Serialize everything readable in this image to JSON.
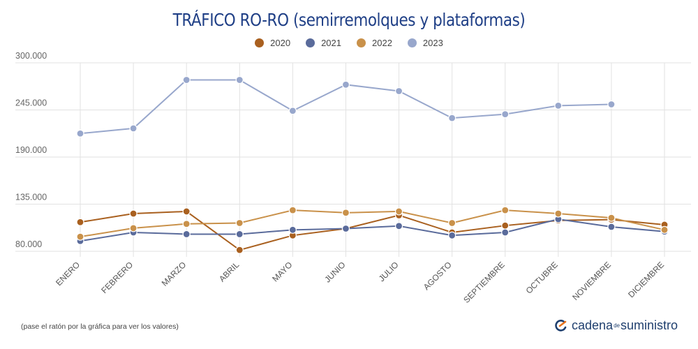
{
  "chart_data": {
    "type": "line",
    "title": "TRÁFICO RO-RO (semirremolques y plataformas)",
    "categories": [
      "ENERO",
      "FEBRERO",
      "MARZO",
      "ABRIL",
      "MAYO",
      "JUNIO",
      "JULIO",
      "AGOSTO",
      "SEPTIEMBRE",
      "OCTUBRE",
      "NOVIEMBRE",
      "DICIEMBRE"
    ],
    "ylim": [
      80000,
      300000
    ],
    "yticks": [
      80000,
      135000,
      190000,
      245000,
      300000
    ],
    "ytick_labels": [
      "80.000",
      "135.000",
      "190.000",
      "245.000",
      "300.000"
    ],
    "grid": true,
    "legend_position": "top",
    "series": [
      {
        "name": "2020",
        "color": "#a9601f",
        "values": [
          114000,
          124000,
          126500,
          81500,
          98500,
          106500,
          122000,
          102000,
          110000,
          116000,
          117000,
          111000
        ]
      },
      {
        "name": "2021",
        "color": "#5a6b9b",
        "values": [
          92000,
          102000,
          100000,
          100000,
          105000,
          106500,
          109500,
          98500,
          102000,
          117500,
          108500,
          103000
        ]
      },
      {
        "name": "2022",
        "color": "#c9914a",
        "values": [
          97000,
          107000,
          112000,
          113000,
          128000,
          125000,
          126500,
          113000,
          128000,
          124000,
          119000,
          105000
        ]
      },
      {
        "name": "2023",
        "color": "#98a7cc",
        "values": [
          217500,
          223500,
          280000,
          280000,
          244000,
          274500,
          267000,
          235500,
          240000,
          250000,
          251500,
          null
        ]
      }
    ]
  },
  "footnote": "(pase el ratón por la gráfica para ver los valores)",
  "brand": {
    "part1": "cadena",
    "part2": "de",
    "part3": "suministro",
    "icon": "cadena-de-suministro-logo-icon"
  }
}
